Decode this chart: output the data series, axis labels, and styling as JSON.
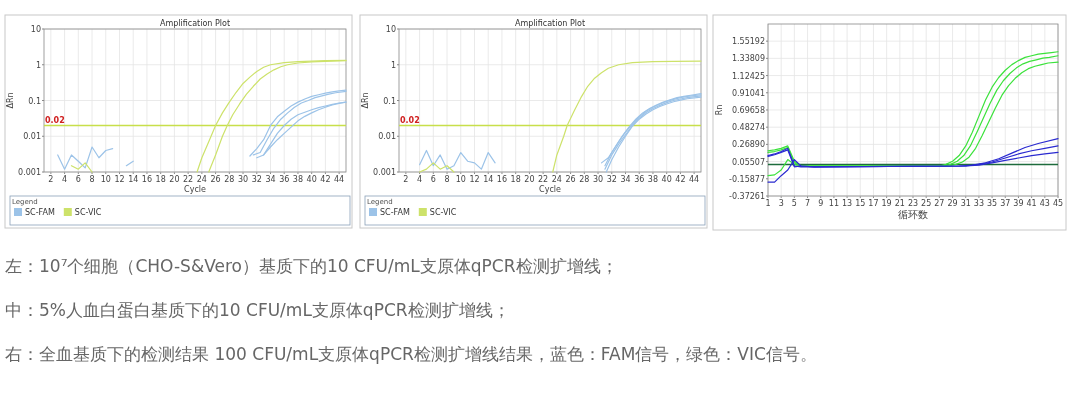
{
  "chart_data": [
    {
      "type": "line",
      "title": "Amplification Plot",
      "xlabel": "Cycle",
      "ylabel": "ΔRn",
      "legend_title": "Legend",
      "log": true,
      "grid": true,
      "legend": "bottom",
      "xlim": [
        1,
        45
      ],
      "xticks": [
        2,
        4,
        6,
        8,
        10,
        12,
        14,
        16,
        18,
        20,
        22,
        24,
        26,
        28,
        30,
        32,
        34,
        36,
        38,
        40,
        42,
        44
      ],
      "ylim": [
        0.001,
        10
      ],
      "yticks": [
        0.001,
        0.01,
        0.1,
        1,
        10
      ],
      "ref_lines": [
        {
          "axis": "y",
          "value": 0.02,
          "label": "0.02",
          "color": "#c8df4a"
        }
      ],
      "annotations": [
        "左：10⁷个细胞（CHO-S&Vero）基质下的10 CFU/mL支原体qPCR检测扩增线；"
      ],
      "series": [
        {
          "name": "SC-FAM",
          "color": "#9cc3e8",
          "x": [
            3,
            4,
            5,
            6,
            7,
            8,
            9,
            10,
            11,
            12,
            13,
            14
          ],
          "values": [
            0.003,
            0.0012,
            0.003,
            0.002,
            0.0013,
            0.005,
            0.0025,
            0.004,
            0.0045,
            null,
            0.0015,
            0.002
          ]
        },
        {
          "color": "#9cc3e8",
          "x": [
            31,
            32,
            33,
            34,
            35,
            36,
            37,
            38,
            39,
            40,
            41,
            42,
            43,
            44,
            45
          ],
          "values": [
            0.0028,
            0.0045,
            0.008,
            0.02,
            0.035,
            0.05,
            0.07,
            0.09,
            0.11,
            0.13,
            0.145,
            0.16,
            0.175,
            0.185,
            0.195
          ]
        },
        {
          "color": "#9cc3e8",
          "x": [
            31.5,
            32.5,
            33.5,
            34.5,
            35.5,
            36.5,
            37.5,
            38.5,
            39.5,
            40.5,
            41.5,
            42.5,
            43.5,
            45
          ],
          "values": [
            0.003,
            0.0035,
            0.008,
            0.017,
            0.03,
            0.045,
            0.065,
            0.085,
            0.1,
            0.12,
            0.135,
            0.15,
            0.165,
            0.18
          ]
        },
        {
          "color": "#9cc3e8",
          "x": [
            32,
            33,
            34,
            35,
            36,
            37,
            38,
            39,
            40,
            41,
            42,
            43,
            44,
            45
          ],
          "values": [
            0.0025,
            0.003,
            0.006,
            0.012,
            0.02,
            0.03,
            0.04,
            0.047,
            0.055,
            0.063,
            0.07,
            0.078,
            0.085,
            0.09
          ]
        },
        {
          "color": "#9cc3e8",
          "x": [
            33,
            34,
            35,
            36,
            37,
            38,
            39,
            40,
            41,
            42,
            43,
            44,
            45
          ],
          "values": [
            0.003,
            0.005,
            0.008,
            0.012,
            0.018,
            0.027,
            0.036,
            0.045,
            0.055,
            0.065,
            0.075,
            0.083,
            0.09
          ]
        },
        {
          "name": "SC-VIC",
          "color": "#cde26a",
          "x": [
            5,
            6,
            7,
            8
          ],
          "values": [
            0.0015,
            0.0012,
            0.0018,
            0.001
          ]
        },
        {
          "color": "#cde26a",
          "x": [
            23.3,
            24,
            25,
            26,
            27,
            28,
            29,
            30,
            31,
            32,
            33,
            34,
            36,
            38,
            40,
            42,
            45
          ],
          "values": [
            0.001,
            0.0025,
            0.007,
            0.02,
            0.045,
            0.09,
            0.17,
            0.3,
            0.45,
            0.65,
            0.85,
            1.0,
            1.15,
            1.22,
            1.27,
            1.3,
            1.33
          ]
        },
        {
          "color": "#cde26a",
          "x": [
            25,
            26,
            27,
            27.7,
            28.5,
            29.5,
            30.5,
            31.5,
            32.5,
            33.5,
            34.5,
            35.5,
            36.5,
            38,
            40,
            42,
            45
          ],
          "values": [
            0.001,
            0.003,
            0.01,
            0.02,
            0.04,
            0.08,
            0.15,
            0.25,
            0.4,
            0.55,
            0.72,
            0.88,
            1.0,
            1.12,
            1.2,
            1.25,
            1.3
          ]
        }
      ]
    },
    {
      "type": "line",
      "title": "Amplification Plot",
      "xlabel": "Cycle",
      "ylabel": "ΔRn",
      "legend_title": "Legend",
      "log": true,
      "grid": true,
      "legend": "bottom",
      "xlim": [
        1,
        45
      ],
      "xticks": [
        2,
        4,
        6,
        8,
        10,
        12,
        14,
        16,
        18,
        20,
        22,
        24,
        26,
        28,
        30,
        32,
        34,
        36,
        38,
        40,
        42,
        44
      ],
      "ylim": [
        0.001,
        10
      ],
      "yticks": [
        0.001,
        0.01,
        0.1,
        1,
        10
      ],
      "ref_lines": [
        {
          "axis": "y",
          "value": 0.02,
          "label": "0.02",
          "color": "#c8df4a"
        }
      ],
      "annotations": [
        "中：5%人血白蛋白基质下的10 CFU/mL支原体qPCR检测扩增线；"
      ],
      "series": [
        {
          "name": "SC-FAM",
          "color": "#9cc3e8",
          "x": [
            4,
            5,
            6,
            7,
            8,
            9,
            10,
            11,
            12,
            13,
            14,
            15
          ],
          "values": [
            0.0016,
            0.004,
            0.0015,
            0.003,
            0.0012,
            0.0015,
            0.0035,
            0.002,
            0.0018,
            0.0012,
            0.0035,
            0.0018
          ]
        },
        {
          "color": "#9cc3e8",
          "x": [
            30.5,
            31.5,
            32.5,
            33.5,
            34.5,
            35.5,
            36.5,
            37.5,
            38.5,
            39.5,
            40.5,
            41.5,
            42.5,
            43.5,
            45
          ],
          "values": [
            0.0018,
            0.0025,
            0.005,
            0.01,
            0.018,
            0.03,
            0.045,
            0.06,
            0.075,
            0.09,
            0.105,
            0.12,
            0.13,
            0.14,
            0.155
          ]
        },
        {
          "color": "#9cc3e8",
          "x": [
            31,
            32,
            33,
            34,
            35,
            36,
            37,
            38,
            39,
            40,
            41,
            42,
            43,
            45
          ],
          "values": [
            0.0015,
            0.0035,
            0.007,
            0.013,
            0.022,
            0.035,
            0.05,
            0.065,
            0.08,
            0.095,
            0.108,
            0.12,
            0.13,
            0.145
          ]
        },
        {
          "color": "#9cc3e8",
          "x": [
            31,
            32,
            33,
            34,
            35,
            36,
            37,
            38,
            39,
            40,
            41,
            42,
            43,
            45
          ],
          "values": [
            0.0012,
            0.003,
            0.006,
            0.011,
            0.02,
            0.032,
            0.046,
            0.06,
            0.073,
            0.087,
            0.1,
            0.11,
            0.12,
            0.135
          ]
        },
        {
          "color": "#9cc3e8",
          "x": [
            31.2,
            32,
            33,
            34,
            35,
            36,
            37,
            38,
            39,
            40,
            41,
            42,
            43,
            45
          ],
          "values": [
            0.001,
            0.0022,
            0.005,
            0.01,
            0.019,
            0.03,
            0.042,
            0.055,
            0.068,
            0.08,
            0.092,
            0.102,
            0.112,
            0.125
          ]
        },
        {
          "name": "SC-VIC",
          "color": "#cde26a",
          "x": [
            4,
            5,
            6,
            7,
            8,
            9
          ],
          "values": [
            0.001,
            0.0012,
            0.0018,
            0.0012,
            0.0015,
            0.001
          ]
        },
        {
          "color": "#cde26a",
          "x": [
            23.4,
            24,
            25,
            25.5,
            26.5,
            27.5,
            28.5,
            29.5,
            30.5,
            31.5,
            33,
            35,
            38,
            41,
            45
          ],
          "values": [
            0.001,
            0.003,
            0.01,
            0.02,
            0.05,
            0.12,
            0.25,
            0.42,
            0.6,
            0.8,
            1.0,
            1.15,
            1.22,
            1.25,
            1.27
          ]
        }
      ]
    },
    {
      "type": "line",
      "xlabel": "循环数",
      "ylabel": "Rn",
      "grid": true,
      "xlim": [
        1,
        45
      ],
      "xticks": [
        1,
        3,
        5,
        7,
        9,
        11,
        13,
        15,
        17,
        19,
        21,
        23,
        25,
        27,
        29,
        31,
        33,
        35,
        37,
        39,
        41,
        43,
        45
      ],
      "ylim": [
        -0.37261,
        1.765
      ],
      "yticks": [
        -0.37261,
        -0.15877,
        0.05507,
        {
          "value": 0.2689,
          "label": "0.26890"
        },
        0.48274,
        0.69658,
        0.91041,
        1.12425,
        1.33809,
        1.55192
      ],
      "ref_lines": [
        {
          "axis": "y",
          "value": 0.02,
          "color": "#1d6b3c"
        }
      ],
      "annotations": [
        "右：全血基质下的检测结果 100 CFU/mL支原体qPCR检测扩增线结果，蓝色：FAM信号，绿色：VIC信号。"
      ],
      "series": [
        {
          "color": "#3be23b",
          "x": [
            1,
            2,
            3,
            4,
            5,
            6,
            27,
            28,
            29,
            30,
            31,
            32,
            33,
            34,
            35,
            36,
            37,
            38,
            39,
            40,
            41,
            42,
            43,
            44,
            45
          ],
          "values": [
            0.19,
            0.2,
            0.22,
            0.25,
            0.06,
            0.0,
            0.0,
            0.02,
            0.06,
            0.13,
            0.25,
            0.42,
            0.62,
            0.82,
            0.98,
            1.1,
            1.19,
            1.26,
            1.31,
            1.35,
            1.37,
            1.39,
            1.4,
            1.41,
            1.42
          ]
        },
        {
          "color": "#3be23b",
          "x": [
            1,
            2,
            3,
            4,
            5,
            6,
            27.7,
            28.7,
            29.7,
            30.7,
            31.7,
            32.7,
            33.7,
            34.7,
            35.7,
            36.7,
            37.7,
            38.7,
            39.7,
            40.7,
            41.7,
            42.7,
            43.7,
            45
          ],
          "values": [
            -0.12,
            -0.11,
            -0.05,
            0.08,
            0.02,
            0.0,
            0.0,
            0.02,
            0.06,
            0.13,
            0.25,
            0.42,
            0.6,
            0.78,
            0.94,
            1.06,
            1.15,
            1.22,
            1.27,
            1.3,
            1.32,
            1.34,
            1.35,
            1.37
          ]
        },
        {
          "color": "#3be23b",
          "x": [
            1,
            2,
            3,
            4,
            5,
            6,
            28.5,
            29.5,
            30.5,
            31.5,
            32.5,
            33.5,
            34.5,
            35.5,
            36.5,
            37.5,
            38.5,
            39.5,
            40.5,
            41.5,
            42.5,
            43.5,
            45
          ],
          "values": [
            0.17,
            0.18,
            0.2,
            0.23,
            0.04,
            0.0,
            0.0,
            0.02,
            0.05,
            0.11,
            0.22,
            0.38,
            0.55,
            0.72,
            0.88,
            1.0,
            1.09,
            1.16,
            1.21,
            1.24,
            1.26,
            1.28,
            1.29
          ]
        },
        {
          "color": "#2a2ad0",
          "x": [
            1,
            2,
            3,
            4,
            5,
            6,
            8,
            30,
            32,
            34,
            36,
            38,
            40,
            42,
            45
          ],
          "values": [
            0.13,
            0.15,
            0.18,
            0.22,
            0.0,
            -0.01,
            -0.01,
            0.0,
            0.01,
            0.04,
            0.09,
            0.16,
            0.23,
            0.28,
            0.34
          ]
        },
        {
          "color": "#2a2ad0",
          "x": [
            1,
            2,
            3,
            4,
            5,
            6,
            8,
            31,
            33,
            35,
            37,
            39,
            41,
            43,
            45
          ],
          "values": [
            -0.2,
            -0.2,
            -0.12,
            -0.05,
            0.08,
            0.0,
            -0.01,
            0.0,
            0.02,
            0.05,
            0.1,
            0.15,
            0.19,
            0.22,
            0.25
          ]
        },
        {
          "color": "#2a2ad0",
          "x": [
            1,
            2,
            3,
            4,
            5,
            6,
            8,
            31,
            33,
            35,
            37,
            39,
            41,
            43,
            45
          ],
          "values": [
            0.12,
            0.14,
            0.17,
            0.2,
            -0.01,
            0.0,
            -0.01,
            0.0,
            0.01,
            0.04,
            0.07,
            0.1,
            0.13,
            0.15,
            0.17
          ]
        }
      ]
    }
  ]
}
